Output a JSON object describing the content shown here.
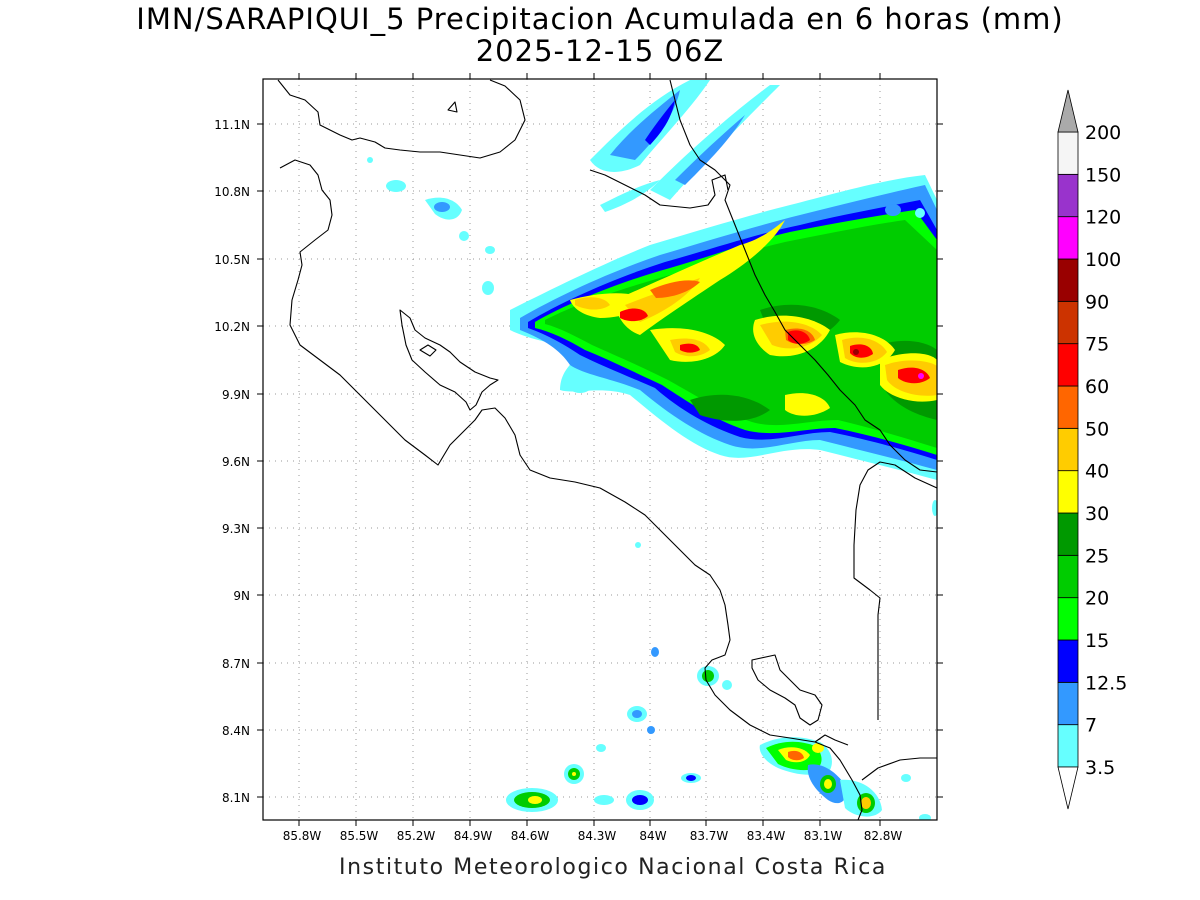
{
  "title_line1": "IMN/SARAPIQUI_5 Precipitacion Acumulada en 6 horas (mm)",
  "title_line2": "2025-12-15 06Z",
  "footer": "Instituto Meteorologico Nacional Costa Rica",
  "lat_ticks": [
    "11.1N",
    "10.8N",
    "10.5N",
    "10.2N",
    "9.9N",
    "9.6N",
    "9.3N",
    "9N",
    "8.7N",
    "8.4N",
    "8.1N"
  ],
  "lon_ticks": [
    "85.8W",
    "85.5W",
    "85.2W",
    "84.9W",
    "84.6W",
    "84.3W",
    "84W",
    "83.7W",
    "83.4W",
    "83.1W",
    "82.8W"
  ],
  "colorbar": {
    "levels": [
      "3.5",
      "7",
      "12.5",
      "15",
      "20",
      "25",
      "30",
      "40",
      "50",
      "60",
      "75",
      "90",
      "100",
      "120",
      "150",
      "200"
    ],
    "colors": [
      "#66ffff",
      "#3399ff",
      "#0000ff",
      "#00ff00",
      "#00cc00",
      "#009900",
      "#ffff00",
      "#ffcc00",
      "#ff6600",
      "#ff0000",
      "#cc3300",
      "#990000",
      "#ff00ff",
      "#9933cc",
      "#f5f5f5"
    ],
    "max_arrow_color": "#aaaaaa"
  }
}
